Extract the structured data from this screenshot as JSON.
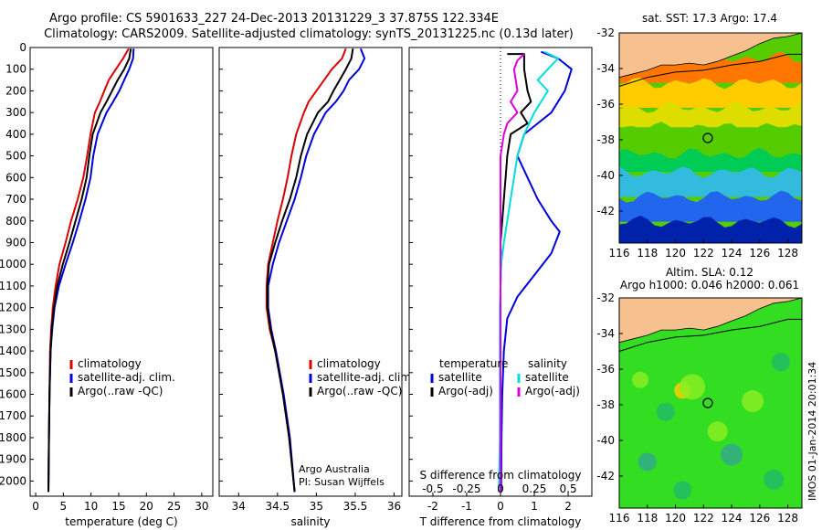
{
  "header": {
    "line1": "Argo profile: CS 5901633_227 24-Dec-2013 20131229_3 37.875S 122.334E",
    "line2": "Climatology: CARS2009. Satellite-adjusted climatology: synTS_20131225.nc (0.13d later)"
  },
  "credit": {
    "org": "Argo Australia",
    "pi": "PI: Susan Wijffels"
  },
  "stamp": "IMOS 01-Jan-2014 20:01:34",
  "colors": {
    "climatology": "#dd0000",
    "satellite": "#0000dd",
    "argo": "#000000",
    "sal_satellite": "#00dddd",
    "sal_argo": "#dd00dd"
  },
  "chart_data": [
    {
      "type": "line",
      "xlabel": "temperature (deg C)",
      "ylabel": "",
      "xlim": [
        -1,
        32
      ],
      "ylim": [
        2070,
        0
      ],
      "xticks": [
        0,
        5,
        10,
        15,
        20,
        25,
        30
      ],
      "yticks": [
        0,
        100,
        200,
        300,
        400,
        500,
        600,
        700,
        800,
        900,
        1000,
        1100,
        1200,
        1300,
        1400,
        1500,
        1600,
        1700,
        1800,
        1900,
        2000
      ],
      "legend": [
        "climatology",
        "satellite-adj. clim.",
        "Argo(..raw -QC)"
      ],
      "series": [
        {
          "name": "climatology",
          "color": "#dd0000",
          "x": [
            16.8,
            15.8,
            14.5,
            13.2,
            12.4,
            11.6,
            10.7,
            9.9,
            9.3,
            8.6,
            7.6,
            6.4,
            5.4,
            4.3,
            3.6,
            3.1,
            2.8,
            2.6,
            2.5,
            2.4,
            2.3
          ],
          "y": [
            5,
            50,
            100,
            150,
            200,
            250,
            300,
            400,
            500,
            600,
            700,
            800,
            900,
            1000,
            1100,
            1200,
            1300,
            1400,
            1600,
            1800,
            2050
          ]
        },
        {
          "name": "satellite-adj. clim.",
          "color": "#0000dd",
          "x": [
            17.7,
            17.6,
            16.9,
            16.0,
            15.1,
            14.0,
            12.8,
            11.2,
            10.4,
            9.9,
            9.0,
            7.9,
            6.7,
            5.4,
            4.2,
            3.4,
            3.0,
            2.7,
            2.5,
            2.4,
            2.3
          ],
          "y": [
            5,
            50,
            100,
            150,
            200,
            250,
            300,
            400,
            500,
            600,
            700,
            800,
            900,
            1000,
            1100,
            1200,
            1300,
            1400,
            1600,
            1800,
            2050
          ]
        },
        {
          "name": "Argo(..raw -QC)",
          "color": "#000000",
          "x": [
            17.2,
            16.9,
            16.0,
            14.8,
            13.8,
            12.8,
            11.7,
            10.3,
            9.7,
            9.2,
            8.3,
            7.2,
            6.1,
            4.9,
            3.9,
            3.3,
            2.9,
            2.7,
            2.5,
            2.4,
            2.3
          ],
          "y": [
            5,
            50,
            100,
            150,
            200,
            250,
            300,
            400,
            500,
            600,
            700,
            800,
            900,
            1000,
            1100,
            1200,
            1300,
            1400,
            1600,
            1800,
            2050
          ]
        }
      ]
    },
    {
      "type": "line",
      "xlabel": "salinity",
      "ylabel": "",
      "xlim": [
        33.75,
        36.1
      ],
      "ylim": [
        2070,
        0
      ],
      "xticks": [
        34,
        34.5,
        35,
        35.5,
        36
      ],
      "legend": [
        "climatology",
        "satellite-adj. clim.",
        "Argo(..raw -QC)"
      ],
      "series": [
        {
          "name": "climatology",
          "color": "#dd0000",
          "x": [
            35.38,
            35.33,
            35.2,
            35.1,
            35.0,
            34.9,
            34.84,
            34.74,
            34.68,
            34.63,
            34.57,
            34.5,
            34.44,
            34.38,
            34.36,
            34.36,
            34.4,
            34.47,
            34.57,
            34.65,
            34.72
          ],
          "y": [
            5,
            50,
            100,
            150,
            200,
            250,
            300,
            400,
            500,
            600,
            700,
            800,
            900,
            1000,
            1100,
            1200,
            1300,
            1400,
            1600,
            1800,
            2050
          ]
        },
        {
          "name": "satellite-adj. clim.",
          "color": "#0000dd",
          "x": [
            35.57,
            35.62,
            35.55,
            35.42,
            35.35,
            35.25,
            35.12,
            34.97,
            34.87,
            34.8,
            34.72,
            34.62,
            34.52,
            34.44,
            34.38,
            34.38,
            34.42,
            34.48,
            34.58,
            34.66,
            34.72
          ],
          "y": [
            5,
            50,
            100,
            150,
            200,
            250,
            300,
            400,
            500,
            600,
            700,
            800,
            900,
            1000,
            1100,
            1200,
            1300,
            1400,
            1600,
            1800,
            2050
          ]
        },
        {
          "name": "Argo(..raw -QC)",
          "color": "#000000",
          "x": [
            35.47,
            35.45,
            35.38,
            35.3,
            35.22,
            35.15,
            35.02,
            34.88,
            34.8,
            34.74,
            34.66,
            34.56,
            34.47,
            34.39,
            34.37,
            34.37,
            34.41,
            34.47,
            34.57,
            34.65,
            34.72
          ],
          "y": [
            5,
            50,
            100,
            150,
            200,
            250,
            300,
            400,
            500,
            600,
            700,
            800,
            900,
            1000,
            1100,
            1200,
            1300,
            1400,
            1600,
            1800,
            2050
          ]
        }
      ]
    },
    {
      "type": "line",
      "xlabel": "T difference from climatology",
      "xlabel_top": "S difference from climatology",
      "ylabel": "",
      "xlim": [
        -2.7,
        2.7
      ],
      "ylim": [
        2070,
        0
      ],
      "xticks": [
        -2,
        -1,
        0,
        1,
        2
      ],
      "sticks_labels": [
        "-0.5",
        "-0.25",
        "0",
        "0.25",
        "0.5"
      ],
      "sticks_x": [
        -2,
        -1,
        0,
        1,
        2
      ],
      "legend_groups": [
        {
          "title": "temperature",
          "entries": [
            "satellite",
            "Argo(-adj)"
          ]
        },
        {
          "title": "salinity",
          "entries": [
            "satellite",
            "Argo(-adj)"
          ]
        }
      ],
      "series": [
        {
          "name": "temperature satellite",
          "color": "#0000dd",
          "x": [
            1.2,
            1.7,
            2.1,
            1.9,
            1.7,
            1.5,
            0.7,
            0.5,
            0.8,
            1.1,
            1.5,
            1.75,
            1.5,
            1.0,
            0.5,
            0.2,
            0.1,
            0.05,
            0.03,
            0.02
          ],
          "y": [
            20,
            50,
            100,
            200,
            250,
            300,
            400,
            500,
            600,
            700,
            800,
            850,
            950,
            1050,
            1150,
            1250,
            1400,
            1600,
            1800,
            2050
          ]
        },
        {
          "name": "temperature Argo(-adj)",
          "color": "#000000",
          "x": [
            0.2,
            0.7,
            0.7,
            0.8,
            0.9,
            0.6,
            0.8,
            0.3,
            0.2,
            0.15,
            0.1,
            0.05,
            0.0,
            0.02,
            0.0,
            0.0,
            0.0,
            0.0,
            0.0,
            0.0
          ],
          "y": [
            30,
            30,
            100,
            200,
            250,
            300,
            350,
            400,
            500,
            600,
            700,
            800,
            900,
            1000,
            1100,
            1200,
            1400,
            1600,
            1800,
            2050
          ]
        },
        {
          "name": "salinity satellite",
          "color": "#00dddd",
          "x": [
            1.3,
            1.7,
            1.4,
            1.1,
            1.4,
            1.2,
            1.0,
            0.7,
            0.5,
            0.4,
            0.3,
            0.2,
            0.1,
            0.02,
            0.0,
            -0.02,
            -0.02,
            -0.02,
            -0.02,
            -0.05
          ],
          "y": [
            20,
            50,
            100,
            150,
            200,
            250,
            300,
            400,
            500,
            600,
            700,
            800,
            900,
            1000,
            1100,
            1200,
            1400,
            1600,
            1800,
            2050
          ]
        },
        {
          "name": "salinity Argo(-adj)",
          "color": "#dd00dd",
          "x": [
            0.7,
            0.5,
            0.4,
            0.5,
            0.3,
            0.5,
            0.2,
            0.1,
            0.0,
            0.0,
            0.0,
            0.0,
            0.0,
            0.0,
            0.0,
            0.0,
            0.0,
            0.0,
            0.0,
            0.0
          ],
          "y": [
            30,
            60,
            100,
            200,
            250,
            300,
            350,
            400,
            500,
            600,
            700,
            800,
            900,
            1000,
            1100,
            1200,
            1400,
            1600,
            1800,
            2050
          ]
        }
      ]
    },
    {
      "type": "heatmap",
      "title": "sat. SST: 17.3 Argo: 17.4",
      "xlim": [
        116,
        129
      ],
      "ylim": [
        -43.8,
        -32
      ],
      "xticks": [
        116,
        118,
        120,
        122,
        124,
        126,
        128
      ],
      "yticks": [
        -32,
        -34,
        -36,
        -38,
        -40,
        -42
      ],
      "marker": [
        122.3,
        -37.9
      ],
      "colors": [
        "#f7c18f",
        "#dd3300",
        "#ff7700",
        "#ffcc00",
        "#dddd00",
        "#55cc00",
        "#00cc55",
        "#33bbdd",
        "#2266ee",
        "#0022aa"
      ]
    },
    {
      "type": "heatmap",
      "title_line1": "Altim. SLA: 0.12",
      "title_line2": "Argo h1000: 0.046 h2000: 0.061",
      "xlim": [
        116,
        129
      ],
      "ylim": [
        -43.8,
        -32
      ],
      "xticks": [
        116,
        118,
        120,
        122,
        124,
        126,
        128
      ],
      "yticks": [
        -32,
        -34,
        -36,
        -38,
        -40,
        -42
      ],
      "marker": [
        122.3,
        -37.9
      ],
      "colors": [
        "#f7c18f",
        "#33dd22",
        "#88ee22",
        "#ffcc00",
        "#22bb66",
        "#33aa88"
      ]
    }
  ]
}
